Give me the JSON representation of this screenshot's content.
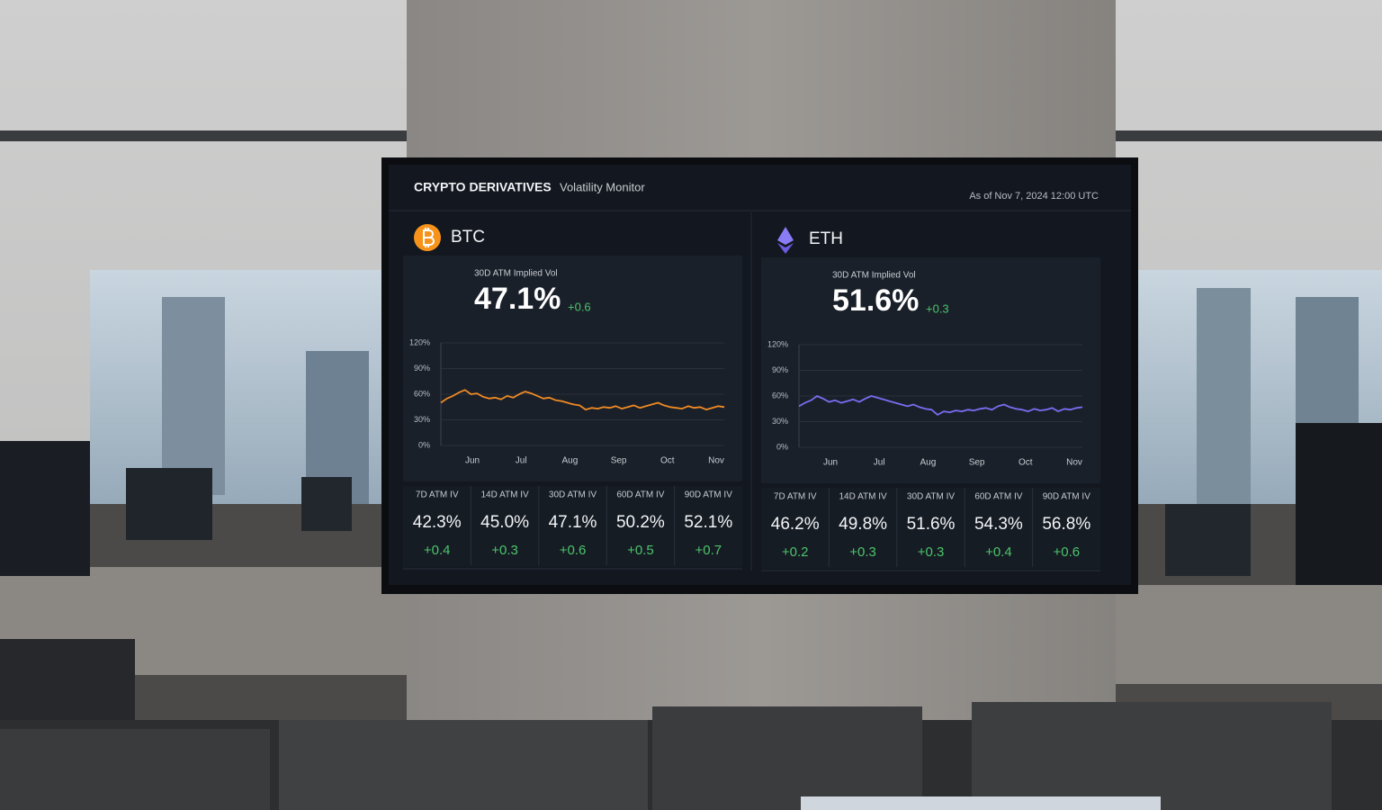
{
  "header": {
    "title": "CRYPTO DERIVATIVES",
    "subtitle": "Volatility Monitor",
    "timestamp": "As of Nov 7, 2024 12:00 UTC"
  },
  "panels": [
    {
      "name": "BTC",
      "metric_label": "30D ATM Implied Vol",
      "value": "47.1%",
      "change": "+0.6",
      "chart": {
        "type": "line",
        "ylim": [
          0,
          120
        ],
        "yticks": [
          {
            "value": 0,
            "label": "0%"
          },
          {
            "value": 30,
            "label": "30%"
          },
          {
            "value": 60,
            "label": "60%"
          },
          {
            "value": 90,
            "label": "90%"
          },
          {
            "value": 120,
            "label": "120%"
          }
        ],
        "months": [
          "Jun",
          "Jul",
          "Aug",
          "Sep",
          "Oct",
          "Nov"
        ],
        "series": [
          {
            "color": "#f08a24",
            "values": [
              50,
              55,
              58,
              62,
              65,
              60,
              61,
              57,
              55,
              56,
              54,
              58,
              56,
              60,
              63,
              61,
              58,
              55,
              56,
              53,
              52,
              50,
              48,
              47,
              42,
              44,
              43,
              45,
              44,
              46,
              43,
              45,
              47,
              44,
              46,
              48,
              50,
              47,
              45,
              44,
              43,
              46,
              44,
              45,
              42,
              44,
              46,
              45
            ]
          }
        ]
      },
      "tenors": [
        {
          "label": "7D ATM IV",
          "value": "42.3%",
          "change": "+0.4"
        },
        {
          "label": "14D ATM IV",
          "value": "45.0%",
          "change": "+0.3"
        },
        {
          "label": "30D ATM IV",
          "value": "47.1%",
          "change": "+0.6"
        },
        {
          "label": "60D ATM IV",
          "value": "50.2%",
          "change": "+0.5"
        },
        {
          "label": "90D ATM IV",
          "value": "52.1%",
          "change": "+0.7"
        }
      ]
    },
    {
      "name": "ETH",
      "metric_label": "30D ATM Implied Vol",
      "value": "51.6%",
      "change": "+0.3",
      "chart": {
        "type": "line",
        "ylim": [
          0,
          120
        ],
        "yticks": [
          {
            "value": 0,
            "label": "0%"
          },
          {
            "value": 30,
            "label": "30%"
          },
          {
            "value": 60,
            "label": "60%"
          },
          {
            "value": 90,
            "label": "90%"
          },
          {
            "value": 120,
            "label": "120%"
          }
        ],
        "months": [
          "Jun",
          "Jul",
          "Aug",
          "Sep",
          "Oct",
          "Nov"
        ],
        "series": [
          {
            "color": "#7b6cf2",
            "values": [
              48,
              52,
              55,
              60,
              57,
              53,
              55,
              52,
              54,
              56,
              53,
              57,
              60,
              58,
              56,
              54,
              52,
              50,
              48,
              50,
              47,
              45,
              44,
              38,
              42,
              41,
              43,
              42,
              44,
              43,
              45,
              46,
              44,
              48,
              50,
              47,
              45,
              44,
              42,
              45,
              43,
              44,
              46,
              42,
              45,
              44,
              46,
              47
            ]
          }
        ]
      },
      "tenors": [
        {
          "label": "7D ATM IV",
          "value": "46.2%",
          "change": "+0.2"
        },
        {
          "label": "14D ATM IV",
          "value": "49.8%",
          "change": "+0.3"
        },
        {
          "label": "30D ATM IV",
          "value": "51.6%",
          "change": "+0.3"
        },
        {
          "label": "60D ATM IV",
          "value": "54.3%",
          "change": "+0.4"
        },
        {
          "label": "90D ATM IV",
          "value": "56.8%",
          "change": "+0.6"
        }
      ]
    }
  ]
}
